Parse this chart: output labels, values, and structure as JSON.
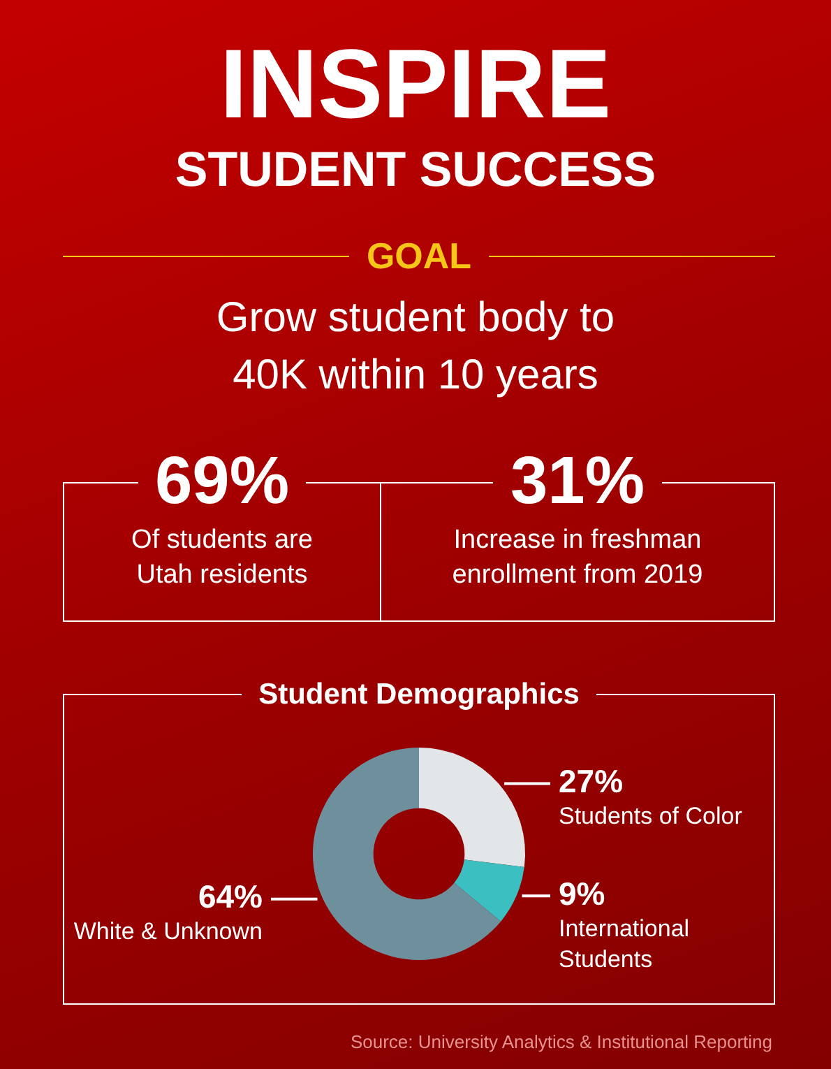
{
  "chart_data": [
    {
      "type": "other",
      "title": "INSPIRE",
      "subtitle": "STUDENT SUCCESS",
      "annotations": [
        "GOAL",
        "Grow student body to 40K within 10 years"
      ]
    },
    {
      "type": "other",
      "title": "69%",
      "annotations": [
        "Of students are Utah residents"
      ]
    },
    {
      "type": "other",
      "title": "31%",
      "annotations": [
        "Increase in freshman enrollment from 2019"
      ]
    },
    {
      "type": "donut",
      "title": "Student Demographics",
      "categories": [
        "Students of Color",
        "International Students",
        "White & Unknown"
      ],
      "values": [
        27,
        9,
        64
      ],
      "colors": [
        "#e2e6e8",
        "#3cbfc1",
        "#6e8f9c"
      ],
      "value_labels": [
        "27%",
        "9%",
        "64%"
      ],
      "annotations": [
        "Source: University Analytics & Institutional Reporting"
      ]
    }
  ]
}
